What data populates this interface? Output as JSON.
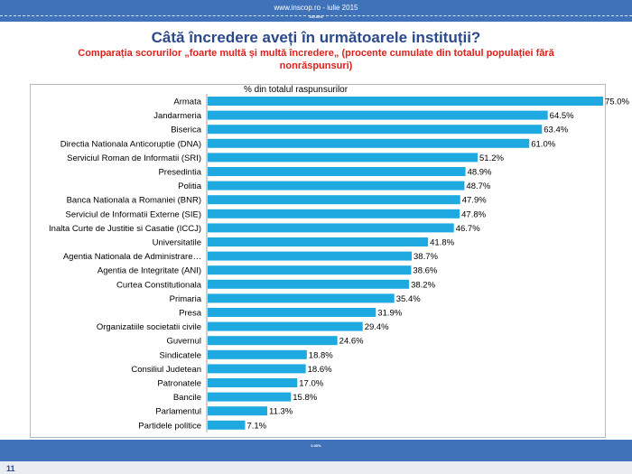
{
  "header": {
    "url_text": "www.inscop.ro  -  iulie 2015",
    "strip_label": "100.00%"
  },
  "title": "Câtă încredere aveți în următoarele instituții?",
  "subtitle": "Comparația scorurilor „foarte multă și multă încredere„ (procente cumulate din totalul populației fără nonrăspunsuri)",
  "footer": {
    "strip_label": "0.00%",
    "page_number": "11"
  },
  "colors": {
    "bar": "#1ea9e1",
    "header_bar": "#3f72b8",
    "title": "#2b4a8b",
    "subtitle": "#e0201c"
  },
  "chart_data": {
    "type": "bar",
    "orientation": "horizontal",
    "title": "",
    "series_label": "% din totalul raspunsurilor",
    "xlim": [
      0,
      75
    ],
    "grid": false,
    "categories": [
      "Armata",
      "Jandarmeria",
      "Biserica",
      "Directia Nationala Anticoruptie (DNA)",
      "Serviciul Roman de Informatii (SRI)",
      "Presedintia",
      "Politia",
      "Banca Nationala a Romaniei (BNR)",
      "Serviciul de Informatii Externe (SIE)",
      "Inalta Curte de Justitie si Casatie (ICCJ)",
      "Universitatile",
      "Agentia Nationala de Administrare…",
      "Agentia de Integritate (ANI)",
      "Curtea Constitutionala",
      "Primaria",
      "Presa",
      "Organizatiile societatii civile",
      "Guvernul",
      "Sindicatele",
      "Consiliul Judetean",
      "Patronatele",
      "Bancile",
      "Parlamentul",
      "Partidele politice"
    ],
    "values": [
      75.0,
      64.5,
      63.4,
      61.0,
      51.2,
      48.9,
      48.7,
      47.9,
      47.8,
      46.7,
      41.8,
      38.7,
      38.6,
      38.2,
      35.4,
      31.9,
      29.4,
      24.6,
      18.8,
      18.6,
      17.0,
      15.8,
      11.3,
      7.1
    ],
    "value_labels": [
      "75.0%",
      "64.5%",
      "63.4%",
      "61.0%",
      "51.2%",
      "48.9%",
      "48.7%",
      "47.9%",
      "47.8%",
      "46.7%",
      "41.8%",
      "38.7%",
      "38.6%",
      "38.2%",
      "35.4%",
      "31.9%",
      "29.4%",
      "24.6%",
      "18.8%",
      "18.6%",
      "17.0%",
      "15.8%",
      "11.3%",
      "7.1%"
    ]
  }
}
